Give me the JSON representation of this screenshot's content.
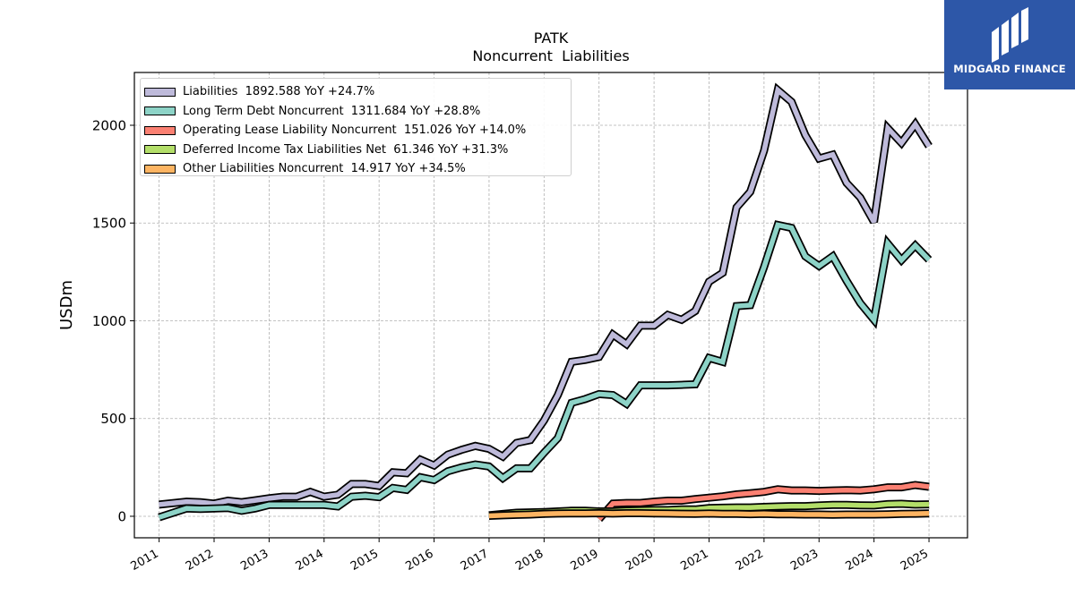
{
  "chart_data": {
    "type": "line",
    "title": "PATK",
    "subtitle": "Noncurrent  Liabilities",
    "ylabel": "USDm",
    "xlabel": "",
    "xlim": [
      2010.55,
      2025.7
    ],
    "ylim": [
      -110,
      2270
    ],
    "grid": true,
    "legend_position": "top-left",
    "x_ticks": [
      2011,
      2012,
      2013,
      2014,
      2015,
      2016,
      2017,
      2018,
      2019,
      2020,
      2021,
      2022,
      2023,
      2024,
      2025
    ],
    "x_tick_labels": [
      "2011",
      "2012",
      "2013",
      "2014",
      "2015",
      "2016",
      "2017",
      "2018",
      "2019",
      "2020",
      "2021",
      "2022",
      "2023",
      "2024",
      "2025"
    ],
    "y_ticks": [
      0,
      500,
      1000,
      1500,
      2000
    ],
    "y_tick_labels": [
      "0",
      "500",
      "1000",
      "1500",
      "2000"
    ],
    "series": [
      {
        "name": "Liabilities",
        "legend_label": "Liabilities  1892.588 YoY +24.7%",
        "color": "#bebada",
        "x": [
          2011.0,
          2011.5,
          2011.75,
          2012.0,
          2012.25,
          2012.5,
          2012.75,
          2013.0,
          2013.25,
          2013.5,
          2013.75,
          2014.0,
          2014.25,
          2014.5,
          2014.75,
          2015.0,
          2015.25,
          2015.5,
          2015.75,
          2016.0,
          2016.25,
          2016.5,
          2016.75,
          2017.0,
          2017.25,
          2017.5,
          2017.75,
          2018.0,
          2018.25,
          2018.5,
          2018.75,
          2019.0,
          2019.25,
          2019.5,
          2019.75,
          2020.0,
          2020.25,
          2020.5,
          2020.75,
          2021.0,
          2021.25,
          2021.5,
          2021.75,
          2022.0,
          2022.25,
          2022.5,
          2022.75,
          2023.0,
          2023.25,
          2023.5,
          2023.75,
          2024.0,
          2024.25,
          2024.5,
          2024.75,
          2025.0
        ],
        "values": [
          60,
          75,
          72,
          65,
          80,
          72,
          82,
          92,
          100,
          100,
          125,
          100,
          110,
          165,
          165,
          155,
          225,
          220,
          290,
          260,
          315,
          340,
          360,
          345,
          305,
          375,
          390,
          490,
          620,
          790,
          800,
          815,
          930,
          880,
          975,
          975,
          1030,
          1005,
          1050,
          1200,
          1245,
          1580,
          1660,
          1870,
          2180,
          2120,
          1950,
          1830,
          1850,
          1705,
          1630,
          1505,
          1985,
          1910,
          2005,
          1893
        ]
      },
      {
        "name": "Long Term Debt Noncurrent",
        "legend_label": "Long Term Debt Noncurrent  1311.684 YoY +28.8%",
        "color": "#8dd3c7",
        "x": [
          2011.0,
          2011.5,
          2011.75,
          2012.0,
          2012.25,
          2012.5,
          2012.75,
          2013.0,
          2013.25,
          2013.5,
          2013.75,
          2014.0,
          2014.25,
          2014.5,
          2014.75,
          2015.0,
          2015.25,
          2015.5,
          2015.75,
          2016.0,
          2016.25,
          2016.5,
          2016.75,
          2017.0,
          2017.25,
          2017.5,
          2017.75,
          2018.0,
          2018.25,
          2018.5,
          2018.75,
          2019.0,
          2019.25,
          2019.5,
          2019.75,
          2020.0,
          2020.25,
          2020.5,
          2020.75,
          2021.0,
          2021.25,
          2021.5,
          2021.75,
          2022.0,
          2022.25,
          2022.5,
          2022.75,
          2023.0,
          2023.25,
          2023.5,
          2023.75,
          2024.0,
          2024.25,
          2024.5,
          2024.75,
          2025.0
        ],
        "values": [
          -5,
          40,
          38,
          40,
          42,
          28,
          40,
          58,
          58,
          58,
          58,
          58,
          50,
          100,
          105,
          98,
          145,
          135,
          200,
          185,
          230,
          250,
          265,
          255,
          195,
          245,
          245,
          325,
          400,
          580,
          600,
          625,
          620,
          575,
          670,
          670,
          670,
          672,
          675,
          810,
          790,
          1075,
          1080,
          1275,
          1490,
          1475,
          1330,
          1280,
          1330,
          1205,
          1090,
          1005,
          1395,
          1310,
          1385,
          1312
        ]
      },
      {
        "name": "Operating Lease Liability Noncurrent",
        "legend_label": "Operating Lease Liability Noncurrent  151.026 YoY +14.0%",
        "color": "#fb8072",
        "x": [
          2019.0,
          2019.25,
          2019.5,
          2019.75,
          2020.0,
          2020.25,
          2020.5,
          2020.75,
          2021.0,
          2021.25,
          2021.5,
          2021.75,
          2022.0,
          2022.25,
          2022.5,
          2022.75,
          2023.0,
          2023.25,
          2023.5,
          2023.75,
          2024.0,
          2024.25,
          2024.5,
          2024.75,
          2025.0
        ],
        "values": [
          -15,
          65,
          68,
          68,
          75,
          80,
          80,
          88,
          95,
          102,
          112,
          118,
          125,
          138,
          132,
          132,
          130,
          132,
          134,
          132,
          138,
          148,
          148,
          160,
          151
        ]
      },
      {
        "name": "Deferred Income Tax Liabilities Net",
        "legend_label": "Deferred Income Tax Liabilities Net  61.346 YoY +31.3%",
        "color": "#b3de69",
        "x": [
          2017.0,
          2017.25,
          2017.5,
          2017.75,
          2018.0,
          2018.25,
          2018.5,
          2018.75,
          2019.0,
          2019.25,
          2019.5,
          2019.75,
          2020.0,
          2020.25,
          2020.5,
          2020.75,
          2021.0,
          2021.25,
          2021.5,
          2021.75,
          2022.0,
          2022.25,
          2022.5,
          2022.75,
          2023.0,
          2023.25,
          2023.5,
          2023.75,
          2024.0,
          2024.25,
          2024.5,
          2024.75,
          2025.0
        ],
        "values": [
          5,
          12,
          18,
          20,
          22,
          25,
          28,
          28,
          25,
          25,
          28,
          30,
          32,
          32,
          35,
          35,
          42,
          44,
          45,
          45,
          48,
          50,
          52,
          52,
          55,
          58,
          58,
          56,
          55,
          62,
          64,
          60,
          61
        ]
      },
      {
        "name": "Other Liabilities Noncurrent",
        "legend_label": "Other Liabilities Noncurrent  14.917 YoY +34.5%",
        "color": "#fdb462",
        "x": [
          2017.0,
          2017.25,
          2017.5,
          2017.75,
          2018.0,
          2018.25,
          2018.5,
          2018.75,
          2019.0,
          2019.25,
          2019.5,
          2019.75,
          2020.0,
          2020.25,
          2020.5,
          2020.75,
          2021.0,
          2021.25,
          2021.5,
          2021.75,
          2022.0,
          2022.25,
          2022.5,
          2022.75,
          2023.0,
          2023.25,
          2023.5,
          2023.75,
          2024.0,
          2024.25,
          2024.5,
          2024.75,
          2025.0
        ],
        "values": [
          2,
          5,
          7,
          9,
          12,
          14,
          15,
          15,
          16,
          14,
          16,
          16,
          15,
          14,
          13,
          12,
          14,
          12,
          12,
          11,
          12,
          10,
          10,
          9,
          9,
          8,
          9,
          9,
          9,
          10,
          12,
          13,
          15
        ]
      }
    ]
  },
  "logo": {
    "brand_name": "MIDGARD FINANCE",
    "background_color": "#2d57a8"
  }
}
